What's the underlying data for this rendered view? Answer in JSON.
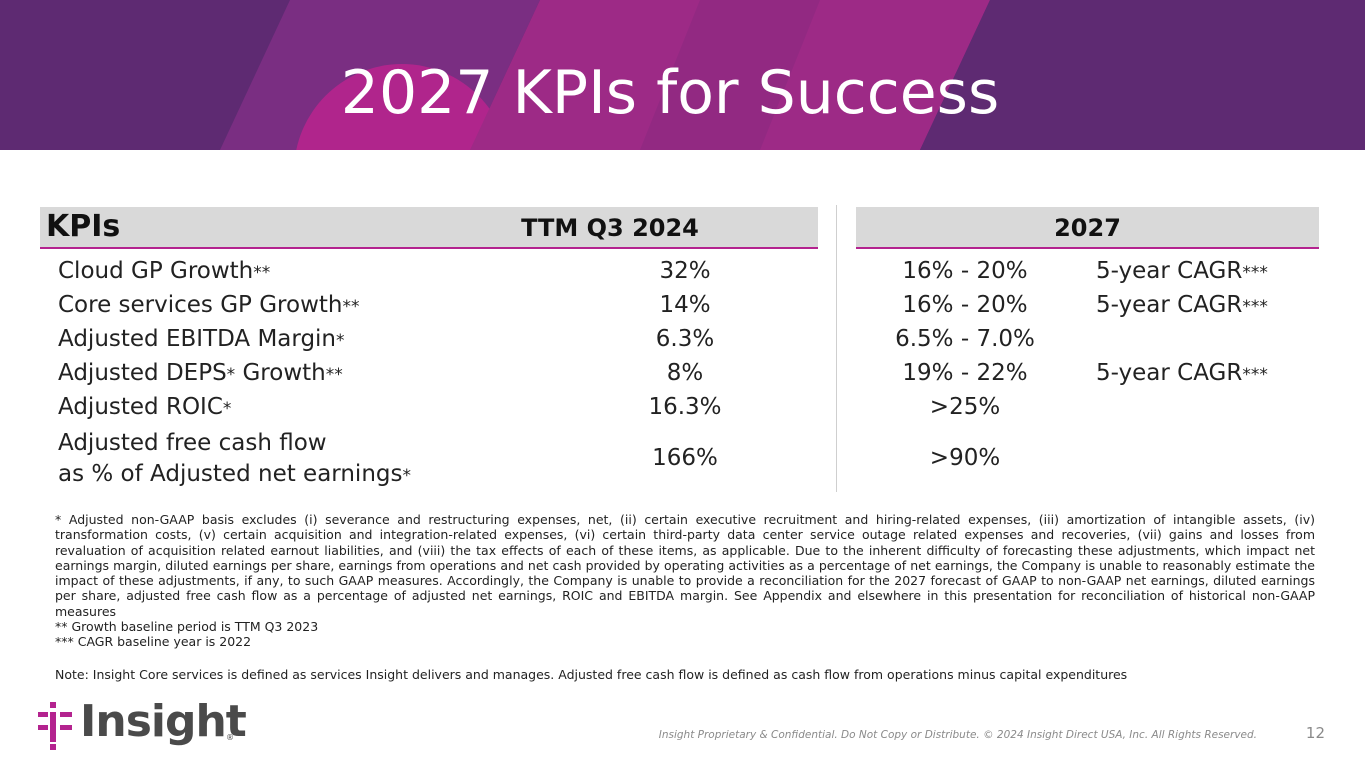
{
  "title": "2027 KPIs for Success",
  "colors": {
    "banner": "#5e2a72",
    "accent": "#b4238f",
    "header_bg": "#d9d9d9",
    "logo_mark": "#b4238f"
  },
  "table": {
    "header_kpis": "KPIs",
    "header_ttm": "TTM Q3 2024",
    "header_2027": "2027",
    "rows": [
      {
        "kpi": "Cloud GP Growth",
        "kpi_mark": "**",
        "ttm": "32%",
        "target": "16% - 20%",
        "note": "5-year CAGR",
        "note_mark": "***"
      },
      {
        "kpi": "Core services GP Growth",
        "kpi_mark": "**",
        "ttm": "14%",
        "target": "16% - 20%",
        "note": "5-year CAGR",
        "note_mark": "***"
      },
      {
        "kpi": "Adjusted EBITDA Margin",
        "kpi_mark": "*",
        "ttm": "6.3%",
        "target": "6.5% - 7.0%",
        "note": "",
        "note_mark": ""
      },
      {
        "kpi": "Adjusted DEPS",
        "kpi_mark": "*",
        "kpi_suffix": " Growth",
        "kpi_suffix_mark": "**",
        "ttm": "8%",
        "target": "19% - 22%",
        "note": "5-year CAGR",
        "note_mark": "***"
      },
      {
        "kpi": "Adjusted ROIC",
        "kpi_mark": "*",
        "ttm": "16.3%",
        "target": ">25%",
        "note": "",
        "note_mark": ""
      },
      {
        "kpi_line1": "Adjusted free cash flow",
        "kpi_line2": "as % of Adjusted net earnings",
        "kpi_mark": "*",
        "ttm": "166%",
        "target": ">90%",
        "note": "",
        "note_mark": ""
      }
    ]
  },
  "footnotes": {
    "main": "* Adjusted non-GAAP basis excludes (i) severance and restructuring expenses, net, (ii) certain executive recruitment and hiring-related expenses, (iii) amortization of intangible assets, (iv) transformation costs, (v) certain acquisition and integration-related expenses, (vi) certain third-party data center service outage related expenses and recoveries, (vii) gains and losses from revaluation of acquisition related earnout liabilities, and (viii) the tax effects of each of these items, as applicable. Due to the inherent difficulty of forecasting these adjustments, which impact net earnings margin, diluted earnings per share, earnings from operations and net cash provided by operating activities as a percentage of net earnings, the Company is unable to reasonably estimate the impact of these adjustments, if any, to such GAAP measures. Accordingly, the Company is unable to provide a reconciliation for the 2027 forecast of GAAP to non-GAAP net earnings, diluted earnings per share, adjusted free cash flow as a percentage of adjusted net earnings, ROIC and EBITDA margin. See Appendix and elsewhere in this presentation for reconciliation of historical non-GAAP measures",
    "growth": "** Growth baseline period is TTM Q3 2023",
    "cagr": "*** CAGR baseline year is 2022",
    "note": "Note: Insight Core services is defined as services Insight delivers and manages. Adjusted free cash flow is defined as cash flow from operations minus capital expenditures"
  },
  "footer": {
    "logo_text": "Insight",
    "logo_reg": "®",
    "logo_icon": "insight-mark-icon",
    "confidential": "Insight Proprietary & Confidential. Do Not Copy or Distribute. © 2024 Insight Direct USA, Inc. All Rights Reserved.",
    "page_number": "12"
  }
}
